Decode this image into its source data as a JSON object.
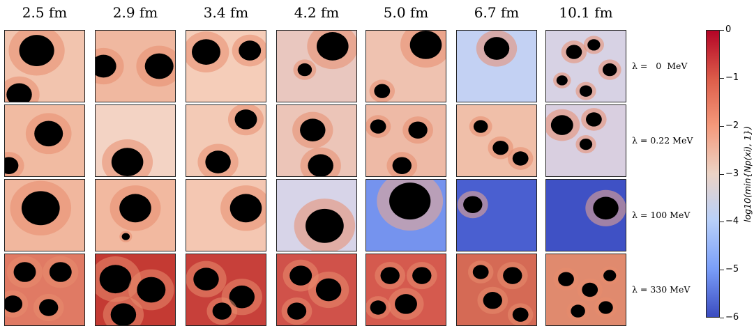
{
  "chart_data": {
    "type": "heatmap",
    "columns": [
      "2.5 fm",
      "2.9 fm",
      "3.4 fm",
      "4.2 fm",
      "5.0 fm",
      "6.7 fm",
      "10.1 fm"
    ],
    "rows": [
      "λ =   0  MeV",
      "λ = 0.22 MeV",
      "λ = 100 MeV",
      "λ = 330 MeV"
    ],
    "colorbar": {
      "label": "log10(min{Np(xi), 1})",
      "ticks": [
        "0",
        "−1",
        "−2",
        "−3",
        "−4",
        "−5",
        "−6"
      ],
      "range": [
        -6,
        0
      ],
      "colormap": "coolwarm"
    }
  }
}
